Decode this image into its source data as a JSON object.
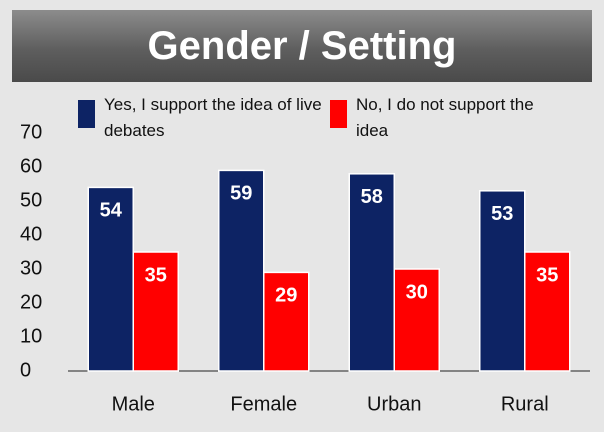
{
  "chart_data": {
    "type": "bar",
    "title": "Gender / Setting",
    "categories": [
      "Male",
      "Female",
      "Urban",
      "Rural"
    ],
    "series": [
      {
        "name": "Yes, I support the idea of live debates",
        "color": "#0d2364",
        "values": [
          54,
          59,
          58,
          53
        ]
      },
      {
        "name": "No, I do not support the idea",
        "color": "#ff0000",
        "values": [
          35,
          29,
          30,
          35
        ]
      }
    ],
    "ylim": [
      0,
      70
    ],
    "yticks": [
      0,
      10,
      20,
      30,
      40,
      50,
      60,
      70
    ],
    "grid": false
  }
}
